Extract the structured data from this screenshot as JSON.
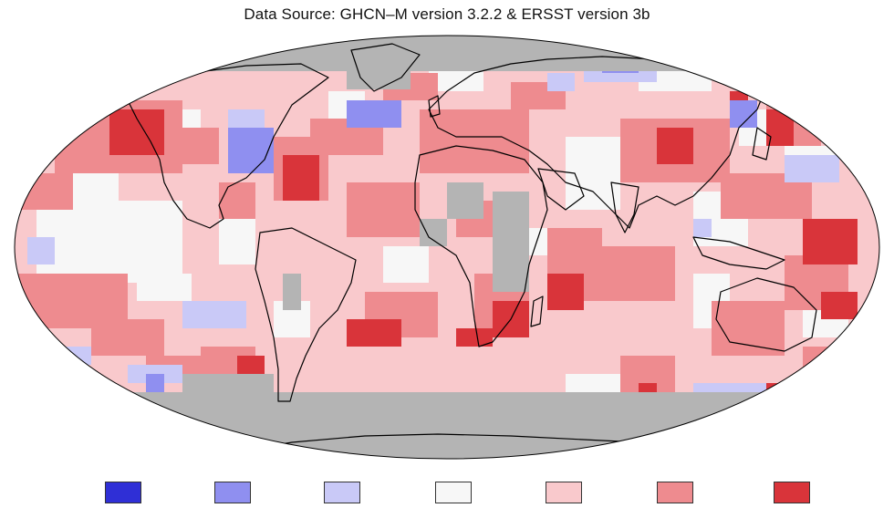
{
  "title": "Data Source: GHCN–M version 3.2.2 & ERSST version 3b",
  "colors": {
    "much_cooler": "#2f2fd6",
    "cooler": "#8f8ff0",
    "slightly_cooler": "#c9c9f7",
    "near_average": "#f7f7f7",
    "slightly_warmer": "#f9c9cc",
    "warmer": "#ee8b8f",
    "much_warmer": "#d9343a",
    "no_data": "#b4b4b4",
    "background": "#ffffff",
    "coastline": "#000000"
  },
  "legend": {
    "swatches": [
      {
        "color": "#2f2fd6"
      },
      {
        "color": "#8f8ff0"
      },
      {
        "color": "#c9c9f7"
      },
      {
        "color": "#f7f7f7"
      },
      {
        "color": "#f9c9cc"
      },
      {
        "color": "#ee8b8f"
      },
      {
        "color": "#d9343a"
      }
    ]
  }
}
